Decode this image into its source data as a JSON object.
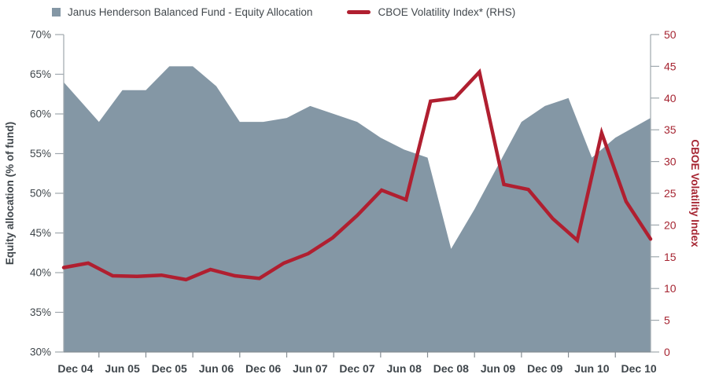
{
  "legend": [
    {
      "label": "Janus Henderson Balanced Fund - Equity Allocation",
      "swatch": "square",
      "color": "#8497A5"
    },
    {
      "label": "CBOE Volatility Index* (RHS)",
      "swatch": "line",
      "color": "#B01F30"
    }
  ],
  "colors": {
    "area": "#8497A5",
    "line": "#B01F30",
    "right_axis_text": "#A62532",
    "gray_text": "#3F464B",
    "axis_line": "#9FA8AE",
    "baseline": "#858D93"
  },
  "chart_data": {
    "type": "area",
    "note": "mixed chart: area series on left axis, line series on right axis",
    "quarters": [
      "Dec 04",
      "Mar 05",
      "Jun 05",
      "Sep 05",
      "Dec 05",
      "Mar 06",
      "Jun 06",
      "Sep 06",
      "Dec 06",
      "Mar 07",
      "Jun 07",
      "Sep 07",
      "Dec 07",
      "Mar 08",
      "Jun 08",
      "Sep 08",
      "Dec 08",
      "Mar 09",
      "Jun 09",
      "Sep 09",
      "Dec 09",
      "Mar 10",
      "Jun 10",
      "Sep 10",
      "Dec 10"
    ],
    "x_tick_labels": [
      "Dec 04",
      "Jun 05",
      "Dec 05",
      "Jun 06",
      "Dec 06",
      "Jun 07",
      "Dec 07",
      "Jun 08",
      "Dec 08",
      "Jun 09",
      "Dec 09",
      "Jun 10",
      "Dec 10"
    ],
    "series": [
      {
        "name": "Janus Henderson Balanced Fund - Equity Allocation",
        "type": "area",
        "axis": "left",
        "color": "#8497A5",
        "values": [
          64,
          59,
          63,
          63,
          66,
          66,
          63.5,
          59,
          59,
          59.5,
          61,
          60,
          59,
          57,
          55.5,
          54.5,
          43,
          48,
          53.5,
          59,
          61,
          62,
          54.5,
          57,
          59.5
        ]
      },
      {
        "name": "CBOE Volatility Index* (RHS)",
        "type": "line",
        "axis": "right",
        "color": "#B01F30",
        "values": [
          13.3,
          14,
          12,
          11.9,
          12.1,
          11.4,
          13,
          12,
          11.6,
          14,
          15.5,
          18,
          21.5,
          25.5,
          24,
          39.5,
          40,
          44.1,
          26.4,
          25.6,
          21,
          17.6,
          34.5,
          23.7,
          17.8
        ]
      }
    ],
    "left_axis": {
      "title": "Equity allocation (% of fund)",
      "min": 30,
      "max": 70,
      "step": 5,
      "suffix": "%"
    },
    "right_axis": {
      "title": "CBOE Volatility Index",
      "min": 0,
      "max": 50,
      "step": 5,
      "suffix": ""
    },
    "grid": false,
    "legend_position": "top"
  }
}
